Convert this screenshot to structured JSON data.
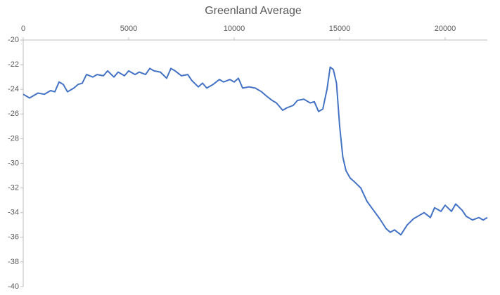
{
  "chart_data": {
    "type": "line",
    "title": "Greenland Average",
    "x": [
      0,
      300,
      700,
      1000,
      1300,
      1500,
      1700,
      1900,
      2100,
      2400,
      2600,
      2800,
      3000,
      3300,
      3500,
      3800,
      4000,
      4300,
      4500,
      4800,
      5000,
      5300,
      5500,
      5800,
      6000,
      6200,
      6500,
      6800,
      7000,
      7200,
      7500,
      7800,
      8000,
      8300,
      8500,
      8700,
      9000,
      9300,
      9500,
      9800,
      10000,
      10200,
      10400,
      10700,
      11000,
      11300,
      11500,
      11800,
      12000,
      12300,
      12500,
      12800,
      13000,
      13300,
      13600,
      13800,
      14000,
      14200,
      14400,
      14550,
      14700,
      14850,
      15000,
      15150,
      15300,
      15500,
      15700,
      16000,
      16300,
      16600,
      16900,
      17200,
      17400,
      17600,
      17900,
      18200,
      18500,
      18800,
      19000,
      19300,
      19500,
      19800,
      20000,
      20300,
      20500,
      20800,
      21000,
      21300,
      21600,
      21800,
      22000
    ],
    "values": [
      -24.4,
      -24.7,
      -24.3,
      -24.4,
      -24.1,
      -24.2,
      -23.4,
      -23.6,
      -24.2,
      -23.9,
      -23.6,
      -23.5,
      -22.8,
      -23.0,
      -22.8,
      -22.9,
      -22.5,
      -23.0,
      -22.6,
      -22.9,
      -22.5,
      -22.8,
      -22.6,
      -22.8,
      -22.3,
      -22.5,
      -22.6,
      -23.1,
      -22.3,
      -22.5,
      -22.9,
      -22.8,
      -23.3,
      -23.8,
      -23.5,
      -23.9,
      -23.6,
      -23.2,
      -23.4,
      -23.2,
      -23.4,
      -23.1,
      -23.9,
      -23.8,
      -23.9,
      -24.2,
      -24.5,
      -24.9,
      -25.1,
      -25.7,
      -25.5,
      -25.3,
      -24.9,
      -24.8,
      -25.1,
      -25.0,
      -25.8,
      -25.6,
      -24.0,
      -22.2,
      -22.4,
      -23.5,
      -27.0,
      -29.5,
      -30.6,
      -31.2,
      -31.5,
      -32.0,
      -33.1,
      -33.8,
      -34.5,
      -35.3,
      -35.6,
      -35.4,
      -35.8,
      -35.0,
      -34.5,
      -34.2,
      -34.0,
      -34.4,
      -33.6,
      -33.9,
      -33.4,
      -33.9,
      -33.3,
      -33.8,
      -34.3,
      -34.6,
      -34.4,
      -34.6,
      -34.4
    ],
    "color": "#4472c4",
    "xlim": [
      0,
      22000
    ],
    "xticks": [
      0,
      5000,
      10000,
      15000,
      20000
    ],
    "ylim": [
      -40,
      -20
    ],
    "yticks": [
      -20,
      -22,
      -24,
      -26,
      -28,
      -30,
      -32,
      -34,
      -36,
      -38,
      -40
    ]
  }
}
